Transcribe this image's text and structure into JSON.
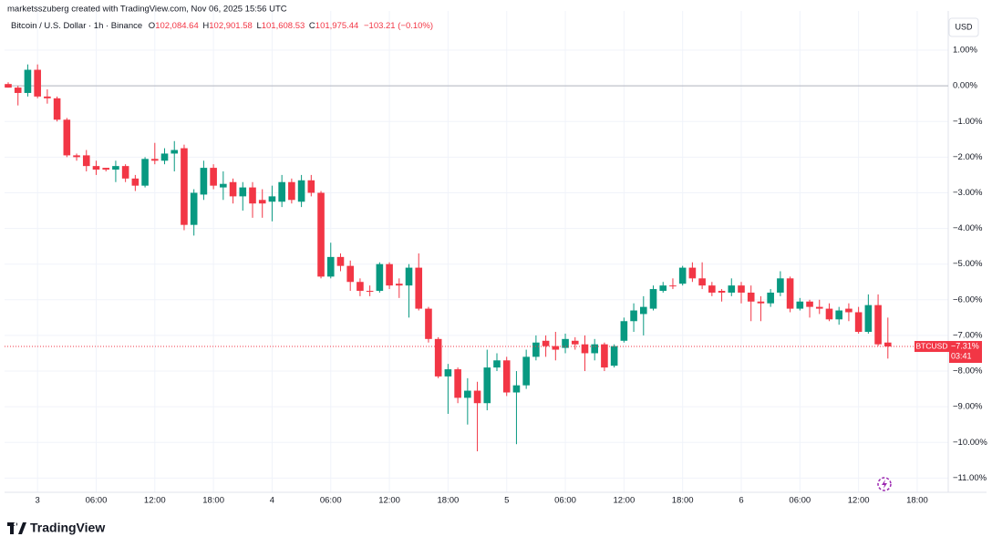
{
  "header": {
    "credit": "marketsszuberg created with TradingView.com, Nov 06, 2025 15:56 UTC",
    "symbol": "Bitcoin / U.S. Dollar · 1h · Binance",
    "ohlc": [
      {
        "key": "O",
        "value": "102,084.64"
      },
      {
        "key": "H",
        "value": "102,901.58"
      },
      {
        "key": "L",
        "value": "101,608.53"
      },
      {
        "key": "C",
        "value": "101,975.44"
      }
    ],
    "change": "−103.21 (−0.10%)",
    "currency": "USD",
    "logo": "TradingView"
  },
  "chart_data": {
    "type": "candlestick",
    "categories": [
      null,
      null,
      null,
      "3",
      null,
      null,
      null,
      null,
      null,
      "06:00",
      null,
      null,
      null,
      null,
      null,
      "12:00",
      null,
      null,
      null,
      null,
      null,
      "18:00",
      null,
      null,
      null,
      null,
      null,
      "4",
      null,
      null,
      null,
      null,
      null,
      "06:00",
      null,
      null,
      null,
      null,
      null,
      "12:00",
      null,
      null,
      null,
      null,
      null,
      "18:00",
      null,
      null,
      null,
      null,
      null,
      "5",
      null,
      null,
      null,
      null,
      null,
      "06:00",
      null,
      null,
      null,
      null,
      null,
      "12:00",
      null,
      null,
      null,
      null,
      null,
      "18:00",
      null,
      null,
      null,
      null,
      null,
      "6",
      null,
      null,
      null,
      null,
      null,
      "06:00",
      null,
      null,
      null,
      null,
      null,
      "12:00",
      null,
      null,
      null,
      null,
      null,
      "18:00",
      null,
      null,
      null
    ],
    "open": [
      0.05,
      -0.05,
      -0.2,
      0.45,
      -0.3,
      -0.35,
      -0.95,
      -1.95,
      -1.95,
      -2.25,
      -2.3,
      -2.35,
      -2.25,
      -2.6,
      -2.8,
      -2.05,
      -2.1,
      -1.9,
      -1.75,
      -3.9,
      -3.05,
      -2.3,
      -2.85,
      -2.7,
      -3.1,
      -2.85,
      -3.2,
      -3.25,
      -3.25,
      -2.7,
      -3.25,
      -2.65,
      -3.0,
      -5.35,
      -4.8,
      -5.05,
      -5.5,
      -5.75,
      -5.75,
      -5.0,
      -5.55,
      -5.6,
      -5.1,
      -6.25,
      -7.1,
      -8.15,
      -7.95,
      -8.75,
      -8.55,
      -8.9,
      -7.9,
      -7.7,
      -8.6,
      -8.4,
      -7.6,
      -7.15,
      -7.3,
      -7.35,
      -7.15,
      -7.25,
      -7.5,
      -7.25,
      -7.85,
      -7.15,
      -6.6,
      -6.4,
      -6.25,
      -5.75,
      -5.6,
      -5.55,
      -5.1,
      -5.4,
      -5.6,
      -5.75,
      -5.8,
      -5.6,
      -5.8,
      -6.05,
      -6.1,
      -5.8,
      -5.4,
      -6.25,
      -6.05,
      -6.2,
      -6.25,
      -6.55,
      -6.25,
      -6.35,
      -6.9,
      -6.15,
      -7.2,
      null,
      null,
      null,
      null,
      null,
      null
    ],
    "high": [
      0.1,
      0.0,
      0.6,
      0.6,
      -0.1,
      -0.3,
      -0.9,
      -1.9,
      -1.8,
      -2.1,
      -2.3,
      -2.1,
      -2.2,
      -2.5,
      -2.0,
      -1.6,
      -1.75,
      -1.55,
      -1.65,
      -2.9,
      -2.1,
      -2.2,
      -2.4,
      -2.6,
      -2.7,
      -2.7,
      -2.9,
      -2.8,
      -2.5,
      -2.6,
      -2.5,
      -2.5,
      -2.95,
      -4.4,
      -4.7,
      -4.9,
      -5.4,
      -5.6,
      -4.95,
      -4.95,
      -5.4,
      -5.0,
      -4.7,
      -6.2,
      -7.05,
      -7.8,
      -7.9,
      -8.2,
      -8.3,
      -7.4,
      -7.5,
      -7.6,
      -8.0,
      -7.4,
      -7.0,
      -7.0,
      -6.9,
      -6.95,
      -7.05,
      -7.0,
      -7.1,
      -7.2,
      -7.25,
      -6.5,
      -6.1,
      -5.9,
      -5.6,
      -5.5,
      -5.4,
      -5.05,
      -4.95,
      -4.95,
      -5.5,
      -5.7,
      -5.4,
      -5.5,
      -5.6,
      -5.9,
      -5.7,
      -5.2,
      -5.35,
      -5.95,
      -6.0,
      -6.0,
      -6.1,
      -6.2,
      -6.1,
      -6.2,
      -5.85,
      -5.85,
      -6.5,
      null,
      null,
      null,
      null,
      null,
      null
    ],
    "low": [
      -0.05,
      -0.55,
      -0.3,
      -0.35,
      -0.5,
      -1.0,
      -2.0,
      -2.1,
      -2.4,
      -2.5,
      -2.4,
      -2.7,
      -2.7,
      -2.95,
      -2.85,
      -2.2,
      -2.2,
      -2.4,
      -4.05,
      -4.2,
      -3.2,
      -2.9,
      -3.2,
      -3.3,
      -3.5,
      -3.7,
      -3.7,
      -3.8,
      -3.4,
      -3.3,
      -3.4,
      -3.1,
      -5.4,
      -5.4,
      -5.2,
      -5.75,
      -5.9,
      -5.9,
      -5.8,
      -5.7,
      -5.95,
      -6.5,
      -6.3,
      -7.2,
      -8.2,
      -9.2,
      -8.9,
      -9.5,
      -10.25,
      -9.1,
      -8.0,
      -8.7,
      -10.05,
      -8.5,
      -7.7,
      -7.6,
      -7.7,
      -7.5,
      -7.4,
      -8.0,
      -7.7,
      -8.0,
      -7.9,
      -7.2,
      -6.9,
      -7.0,
      -6.3,
      -5.8,
      -5.7,
      -5.6,
      -5.5,
      -5.7,
      -5.9,
      -6.05,
      -5.9,
      -6.1,
      -6.6,
      -6.6,
      -6.2,
      -5.9,
      -6.35,
      -6.3,
      -6.5,
      -6.4,
      -6.6,
      -6.7,
      -6.6,
      -6.95,
      -6.95,
      -7.3,
      -7.65,
      null,
      null,
      null,
      null,
      null,
      null
    ],
    "close": [
      -0.05,
      -0.2,
      0.45,
      -0.3,
      -0.35,
      -0.95,
      -1.95,
      -2.0,
      -2.25,
      -2.35,
      -2.35,
      -2.25,
      -2.6,
      -2.8,
      -2.05,
      -2.1,
      -1.9,
      -1.8,
      -3.9,
      -3.0,
      -2.3,
      -2.8,
      -2.75,
      -3.1,
      -2.85,
      -3.3,
      -3.3,
      -3.1,
      -2.7,
      -3.2,
      -2.65,
      -3.0,
      -5.35,
      -4.8,
      -5.05,
      -5.5,
      -5.75,
      -5.75,
      -5.0,
      -5.6,
      -5.6,
      -5.1,
      -6.25,
      -7.1,
      -8.15,
      -7.95,
      -8.75,
      -8.55,
      -8.9,
      -7.9,
      -7.7,
      -8.6,
      -8.4,
      -7.6,
      -7.2,
      -7.3,
      -7.4,
      -7.1,
      -7.25,
      -7.5,
      -7.25,
      -7.9,
      -7.3,
      -6.6,
      -6.3,
      -6.2,
      -5.7,
      -5.6,
      -5.6,
      -5.1,
      -5.4,
      -5.6,
      -5.8,
      -5.8,
      -5.6,
      -5.8,
      -6.05,
      -6.1,
      -5.8,
      -5.4,
      -6.25,
      -6.05,
      -6.2,
      -6.25,
      -6.55,
      -6.3,
      -6.35,
      -6.9,
      -6.15,
      -7.25,
      -7.31,
      null,
      null,
      null,
      null,
      null,
      null
    ],
    "up_color": "#089981",
    "down_color": "#f23645",
    "ylim": [
      -11.4,
      2.1
    ],
    "yticks": [
      {
        "value": 1,
        "label": "1.00%"
      },
      {
        "value": 0,
        "label": "0.00%"
      },
      {
        "value": -1,
        "label": "−1.00%"
      },
      {
        "value": -2,
        "label": "−2.00%"
      },
      {
        "value": -3,
        "label": "−3.00%"
      },
      {
        "value": -4,
        "label": "−4.00%"
      },
      {
        "value": -5,
        "label": "−5.00%"
      },
      {
        "value": -6,
        "label": "−6.00%"
      },
      {
        "value": -7,
        "label": "−7.00%"
      },
      {
        "value": -8,
        "label": "−8.00%"
      },
      {
        "value": -9,
        "label": "−9.00%"
      },
      {
        "value": -10,
        "label": "−10.00%"
      },
      {
        "value": -11,
        "label": "−11.00%"
      }
    ],
    "grid": true,
    "baseline": 0,
    "last_price": {
      "symbol": "BTCUSD",
      "value": -7.31,
      "label": "−7.31%",
      "countdown": "03:41"
    }
  }
}
